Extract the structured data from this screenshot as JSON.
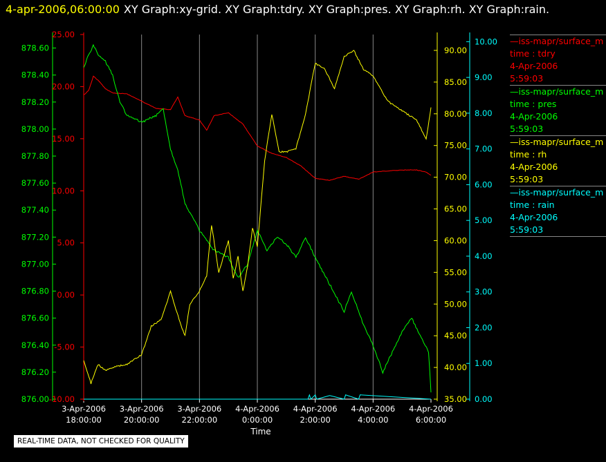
{
  "header": {
    "datetime": "4-apr-2006,06:00:00",
    "graphs": "XY Graph:xy-grid.  XY Graph:tdry.  XY Graph:pres.  XY Graph:rh.  XY Graph:rain."
  },
  "footer_note": "REAL-TIME DATA, NOT CHECKED FOR QUALITY",
  "legend": [
    {
      "source": "iss-mapr/surface_m",
      "var": "time : tdry",
      "date": "4-Apr-2006",
      "time": "5:59:03",
      "color": "#ff0000"
    },
    {
      "source": "iss-mapr/surface_m",
      "var": "time : pres",
      "date": "4-Apr-2006",
      "time": "5:59:03",
      "color": "#00ff00"
    },
    {
      "source": "iss-mapr/surface_m",
      "var": "time : rh",
      "date": "4-Apr-2006",
      "time": "5:59:03",
      "color": "#ffff00"
    },
    {
      "source": "iss-mapr/surface_m",
      "var": "time : rain",
      "date": "4-Apr-2006",
      "time": "5:59:03",
      "color": "#00ffff"
    }
  ],
  "chart_data": {
    "type": "line",
    "xlabel": "Time",
    "x_range": [
      "3-Apr-2006 18:00:00",
      "4-Apr-2006 06:00:00"
    ],
    "x_ticks": [
      {
        "date": "3-Apr-2006",
        "time": "18:00:00"
      },
      {
        "date": "3-Apr-2006",
        "time": "20:00:00"
      },
      {
        "date": "3-Apr-2006",
        "time": "22:00:00"
      },
      {
        "date": "4-Apr-2006",
        "time": "0:00:00"
      },
      {
        "date": "4-Apr-2006",
        "time": "2:00:00"
      },
      {
        "date": "4-Apr-2006",
        "time": "4:00:00"
      },
      {
        "date": "4-Apr-2006",
        "time": "6:00:00"
      }
    ],
    "grid": "vertical",
    "axes": {
      "pres": {
        "color": "#00ff00",
        "range": [
          876.0,
          878.7
        ],
        "ticks": [
          "876.00",
          "876.20",
          "876.40",
          "876.60",
          "876.80",
          "877.00",
          "877.20",
          "877.40",
          "877.60",
          "877.80",
          "878.00",
          "878.20",
          "878.40",
          "878.60"
        ]
      },
      "tdry": {
        "color": "#ff0000",
        "range": [
          -10,
          25
        ],
        "ticks": [
          "-10.00",
          "-5.00",
          "0.00",
          "5.00",
          "10.00",
          "15.00",
          "20.00",
          "25.00"
        ]
      },
      "rh": {
        "color": "#ffff00",
        "range": [
          35,
          92.5
        ],
        "ticks": [
          "35.00",
          "40.00",
          "45.00",
          "50.00",
          "55.00",
          "60.00",
          "65.00",
          "70.00",
          "75.00",
          "80.00",
          "85.00",
          "90.00"
        ]
      },
      "rain": {
        "color": "#00ffff",
        "range": [
          0,
          10.2
        ],
        "ticks": [
          "0.00",
          "1.00",
          "2.00",
          "3.00",
          "4.00",
          "5.00",
          "6.00",
          "7.00",
          "8.00",
          "9.00",
          "10.00"
        ]
      }
    },
    "series": [
      {
        "name": "time : tdry",
        "color": "#ff0000",
        "axis": "tdry",
        "x": [
          "3-Apr-2006 18:00",
          "3-Apr-2006 18:10",
          "3-Apr-2006 18:20",
          "3-Apr-2006 18:30",
          "3-Apr-2006 18:45",
          "3-Apr-2006 19:00",
          "3-Apr-2006 19:30",
          "3-Apr-2006 20:00",
          "3-Apr-2006 20:30",
          "3-Apr-2006 21:00",
          "3-Apr-2006 21:15",
          "3-Apr-2006 21:30",
          "3-Apr-2006 22:00",
          "3-Apr-2006 22:15",
          "3-Apr-2006 22:30",
          "3-Apr-2006 23:00",
          "3-Apr-2006 23:30",
          "4-Apr-2006 00:00",
          "4-Apr-2006 00:30",
          "4-Apr-2006 01:00",
          "4-Apr-2006 01:30",
          "4-Apr-2006 02:00",
          "4-Apr-2006 02:30",
          "4-Apr-2006 03:00",
          "4-Apr-2006 03:30",
          "4-Apr-2006 04:00",
          "4-Apr-2006 04:30",
          "4-Apr-2006 05:00",
          "4-Apr-2006 05:30",
          "4-Apr-2006 05:50",
          "4-Apr-2006 06:00"
        ],
        "y": [
          19.2,
          19.6,
          21.0,
          20.6,
          19.8,
          19.4,
          19.3,
          18.6,
          17.9,
          17.8,
          19.0,
          17.2,
          16.8,
          15.8,
          17.2,
          17.5,
          16.4,
          14.3,
          13.6,
          13.2,
          12.4,
          11.2,
          11.0,
          11.4,
          11.1,
          11.8,
          11.9,
          12.0,
          12.0,
          11.8,
          11.5
        ]
      },
      {
        "name": "time : pres",
        "color": "#00ff00",
        "axis": "pres",
        "x": [
          "3-Apr-2006 18:00",
          "3-Apr-2006 18:10",
          "3-Apr-2006 18:20",
          "3-Apr-2006 18:30",
          "3-Apr-2006 18:45",
          "3-Apr-2006 19:00",
          "3-Apr-2006 19:15",
          "3-Apr-2006 19:30",
          "3-Apr-2006 20:00",
          "3-Apr-2006 20:30",
          "3-Apr-2006 20:45",
          "3-Apr-2006 21:00",
          "3-Apr-2006 21:15",
          "3-Apr-2006 21:30",
          "3-Apr-2006 22:00",
          "3-Apr-2006 22:30",
          "3-Apr-2006 23:00",
          "3-Apr-2006 23:20",
          "3-Apr-2006 23:40",
          "4-Apr-2006 00:00",
          "4-Apr-2006 00:20",
          "4-Apr-2006 00:40",
          "4-Apr-2006 01:00",
          "4-Apr-2006 01:20",
          "4-Apr-2006 01:40",
          "4-Apr-2006 02:00",
          "4-Apr-2006 02:30",
          "4-Apr-2006 03:00",
          "4-Apr-2006 03:15",
          "4-Apr-2006 03:40",
          "4-Apr-2006 04:00",
          "4-Apr-2006 04:20",
          "4-Apr-2006 04:40",
          "4-Apr-2006 05:00",
          "4-Apr-2006 05:20",
          "4-Apr-2006 05:40",
          "4-Apr-2006 05:55",
          "4-Apr-2006 06:00"
        ],
        "y": [
          878.45,
          878.55,
          878.62,
          878.55,
          878.5,
          878.4,
          878.2,
          878.1,
          878.05,
          878.1,
          878.15,
          877.85,
          877.7,
          877.45,
          877.25,
          877.1,
          877.05,
          876.9,
          877.0,
          877.25,
          877.1,
          877.2,
          877.15,
          877.05,
          877.2,
          877.05,
          876.85,
          876.65,
          876.8,
          876.55,
          876.4,
          876.2,
          876.35,
          876.5,
          876.6,
          876.45,
          876.35,
          876.05
        ]
      },
      {
        "name": "time : rh",
        "color": "#ffff00",
        "axis": "rh",
        "x": [
          "3-Apr-2006 18:00",
          "3-Apr-2006 18:15",
          "3-Apr-2006 18:30",
          "3-Apr-2006 18:45",
          "3-Apr-2006 19:00",
          "3-Apr-2006 19:30",
          "3-Apr-2006 20:00",
          "3-Apr-2006 20:20",
          "3-Apr-2006 20:40",
          "3-Apr-2006 21:00",
          "3-Apr-2006 21:20",
          "3-Apr-2006 21:30",
          "3-Apr-2006 21:40",
          "3-Apr-2006 22:00",
          "3-Apr-2006 22:15",
          "3-Apr-2006 22:25",
          "3-Apr-2006 22:40",
          "3-Apr-2006 23:00",
          "3-Apr-2006 23:10",
          "3-Apr-2006 23:20",
          "3-Apr-2006 23:30",
          "3-Apr-2006 23:40",
          "3-Apr-2006 23:50",
          "4-Apr-2006 00:00",
          "4-Apr-2006 00:15",
          "4-Apr-2006 00:30",
          "4-Apr-2006 00:45",
          "4-Apr-2006 01:00",
          "4-Apr-2006 01:20",
          "4-Apr-2006 01:40",
          "4-Apr-2006 02:00",
          "4-Apr-2006 02:20",
          "4-Apr-2006 02:40",
          "4-Apr-2006 03:00",
          "4-Apr-2006 03:20",
          "4-Apr-2006 03:40",
          "4-Apr-2006 04:00",
          "4-Apr-2006 04:30",
          "4-Apr-2006 05:00",
          "4-Apr-2006 05:30",
          "4-Apr-2006 05:50",
          "4-Apr-2006 06:00"
        ],
        "y": [
          41.0,
          37.5,
          40.5,
          39.5,
          40.0,
          40.5,
          42.0,
          46.5,
          47.5,
          52.0,
          47.0,
          45.0,
          50.0,
          52.0,
          54.5,
          62.5,
          55.0,
          60.0,
          54.0,
          57.5,
          52.0,
          56.0,
          62.0,
          59.0,
          72.5,
          80.0,
          74.0,
          74.0,
          74.5,
          80.0,
          88.0,
          87.0,
          84.0,
          89.0,
          90.0,
          87.0,
          86.0,
          82.0,
          80.5,
          79.0,
          76.0,
          81.0
        ]
      },
      {
        "name": "time : rain",
        "color": "#00ffff",
        "axis": "rain",
        "x": [
          "3-Apr-2006 18:00",
          "4-Apr-2006 01:45",
          "4-Apr-2006 01:48",
          "4-Apr-2006 01:51",
          "4-Apr-2006 02:00",
          "4-Apr-2006 02:03",
          "4-Apr-2006 02:30",
          "4-Apr-2006 03:00",
          "4-Apr-2006 03:03",
          "4-Apr-2006 03:30",
          "4-Apr-2006 03:33",
          "4-Apr-2006 06:00"
        ],
        "y": [
          0.0,
          0.0,
          0.12,
          0.0,
          0.12,
          0.0,
          0.1,
          0.0,
          0.12,
          0.0,
          0.12,
          0.0
        ]
      }
    ]
  }
}
